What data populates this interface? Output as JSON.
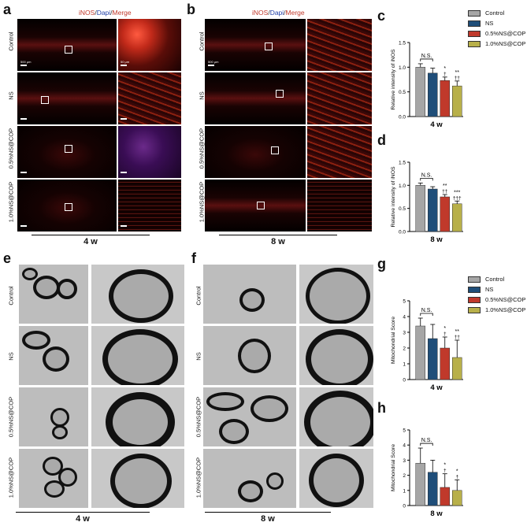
{
  "panels": {
    "a": {
      "label": "a",
      "title_parts": [
        "iNOS",
        "/",
        "Dapi",
        "/",
        "Merge"
      ],
      "bottom": "4 w",
      "scale_text": "500 μm",
      "zoom_scale_text": "50 μm"
    },
    "b": {
      "label": "b",
      "title_parts": [
        "iNOS",
        "/",
        "Dapi",
        "/",
        "Merge"
      ],
      "bottom": "8 w",
      "scale_text": "500 μm"
    },
    "e": {
      "label": "e",
      "bottom": "4 w"
    },
    "f": {
      "label": "f",
      "bottom": "8 w"
    },
    "c": {
      "label": "c"
    },
    "d": {
      "label": "d"
    },
    "g": {
      "label": "g"
    },
    "h": {
      "label": "h"
    }
  },
  "row_labels": [
    "Control",
    "NS",
    "0.5%NS@COP",
    "1.0%NS@COP"
  ],
  "legend": [
    {
      "label": "Control",
      "color": "#a6a6a6"
    },
    {
      "label": "NS",
      "color": "#1f4e79"
    },
    {
      "label": "0.5%NS@COP",
      "color": "#c0392b"
    },
    {
      "label": "1.0%NS@COP",
      "color": "#b8b04a"
    }
  ],
  "colors": {
    "control": "#a6a6a6",
    "ns": "#1f4e79",
    "low": "#c0392b",
    "high": "#b8b04a"
  },
  "chart_data": [
    {
      "id": "c",
      "type": "bar",
      "categories": [
        "Control",
        "NS",
        "0.5%NS@COP",
        "1.0%NS@COP"
      ],
      "values": [
        1.0,
        0.88,
        0.73,
        0.62
      ],
      "errors": [
        0.07,
        0.1,
        0.07,
        0.1
      ],
      "ylabel": "Relative intensity of iNOS",
      "xlabel": "4 w",
      "ylim": [
        0,
        1.5
      ],
      "yticks": [
        "0.0",
        "0.5",
        "1.0",
        "1.5"
      ],
      "sig_top": [
        "",
        "",
        "*",
        "**"
      ],
      "sig_bottom": [
        "",
        "",
        "†",
        "††"
      ],
      "bracket": "N.S."
    },
    {
      "id": "d",
      "type": "bar",
      "categories": [
        "Control",
        "NS",
        "0.5%NS@COP",
        "1.0%NS@COP"
      ],
      "values": [
        1.0,
        0.92,
        0.75,
        0.6
      ],
      "errors": [
        0.05,
        0.05,
        0.05,
        0.06
      ],
      "ylabel": "Relative intensity of iNOS",
      "xlabel": "8 w",
      "ylim": [
        0,
        1.5
      ],
      "yticks": [
        "0.0",
        "0.5",
        "1.0",
        "1.5"
      ],
      "sig_top": [
        "",
        "",
        "**",
        "***"
      ],
      "sig_bottom": [
        "",
        "",
        "††",
        "†††"
      ],
      "bracket": "N.S."
    },
    {
      "id": "g",
      "type": "bar",
      "categories": [
        "Control",
        "NS",
        "0.5%NS@COP",
        "1.0%NS@COP"
      ],
      "values": [
        3.4,
        2.6,
        2.0,
        1.4
      ],
      "errors": [
        0.5,
        0.9,
        0.7,
        1.1
      ],
      "ylabel": "Mitochondrial Score",
      "xlabel": "4 w",
      "ylim": [
        0,
        5
      ],
      "yticks": [
        "0",
        "1",
        "2",
        "3",
        "4",
        "5"
      ],
      "sig_top": [
        "",
        "",
        "*",
        "**"
      ],
      "sig_bottom": [
        "",
        "",
        "†",
        "††"
      ],
      "bracket": "N.S."
    },
    {
      "id": "h",
      "type": "bar",
      "categories": [
        "Control",
        "NS",
        "0.5%NS@COP",
        "1.0%NS@COP"
      ],
      "values": [
        2.8,
        2.2,
        1.2,
        1.0
      ],
      "errors": [
        1.0,
        0.8,
        0.9,
        0.7
      ],
      "ylabel": "Mitochondrial Score",
      "xlabel": "8 w",
      "ylim": [
        0,
        5
      ],
      "yticks": [
        "0",
        "1",
        "2",
        "3",
        "4",
        "5"
      ],
      "sig_top": [
        "",
        "",
        "*",
        "*"
      ],
      "sig_bottom": [
        "",
        "",
        "†",
        "†"
      ],
      "bracket": "N.S."
    }
  ]
}
